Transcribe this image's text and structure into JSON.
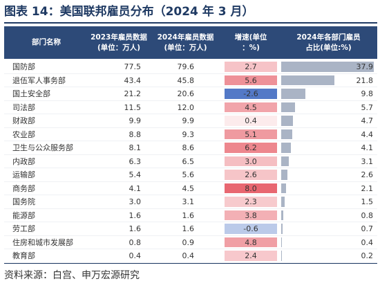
{
  "title": "图表 14：美国联邦雇员分布（2024 年 3 月）",
  "headers": {
    "dept": "部门名称",
    "y2023_line1": "2023年雇员数据",
    "y2023_line2": "(单位：万人)",
    "y2024_line1": "2024年雇员数据",
    "y2024_line2": "(单位：万人)",
    "growth_line1": "增速(单位",
    "growth_line2": "：%)",
    "share_line1": "2024年各部门雇员",
    "share_line2": "占比(单位:%)"
  },
  "colors": {
    "header_bg": "#2d4a78",
    "positive": "#e65c66",
    "negative": "#4a72c4",
    "share_bar": "#aab4c5"
  },
  "rows": [
    {
      "name": "国防部",
      "y2023": "77.5",
      "y2024": "79.6",
      "growth": 2.7,
      "growth_label": "2.7",
      "share": 37.9,
      "share_label": "37.9"
    },
    {
      "name": "退伍军人事务部",
      "y2023": "43.4",
      "y2024": "45.8",
      "growth": 5.6,
      "growth_label": "5.6",
      "share": 21.8,
      "share_label": "21.8"
    },
    {
      "name": "国土安全部",
      "y2023": "21.2",
      "y2024": "20.6",
      "growth": -2.6,
      "growth_label": "-2.6",
      "share": 9.8,
      "share_label": "9.8"
    },
    {
      "name": "司法部",
      "y2023": "11.5",
      "y2024": "12.0",
      "growth": 4.5,
      "growth_label": "4.5",
      "share": 5.7,
      "share_label": "5.7"
    },
    {
      "name": "财政部",
      "y2023": "9.9",
      "y2024": "9.9",
      "growth": 0.4,
      "growth_label": "0.4",
      "share": 4.7,
      "share_label": "4.7"
    },
    {
      "name": "农业部",
      "y2023": "8.8",
      "y2024": "9.3",
      "growth": 5.1,
      "growth_label": "5.1",
      "share": 4.4,
      "share_label": "4.4"
    },
    {
      "name": "卫生与公众服务部",
      "y2023": "8.1",
      "y2024": "8.6",
      "growth": 6.2,
      "growth_label": "6.2",
      "share": 4.1,
      "share_label": "4.1"
    },
    {
      "name": "内政部",
      "y2023": "6.3",
      "y2024": "6.5",
      "growth": 3.0,
      "growth_label": "3.0",
      "share": 3.1,
      "share_label": "3.1"
    },
    {
      "name": "运输部",
      "y2023": "5.4",
      "y2024": "5.6",
      "growth": 2.6,
      "growth_label": "2.6",
      "share": 2.6,
      "share_label": "2.6"
    },
    {
      "name": "商务部",
      "y2023": "4.1",
      "y2024": "4.5",
      "growth": 8.0,
      "growth_label": "8.0",
      "share": 2.1,
      "share_label": "2.1"
    },
    {
      "name": "国务院",
      "y2023": "3.0",
      "y2024": "3.1",
      "growth": 2.3,
      "growth_label": "2.3",
      "share": 1.5,
      "share_label": "1.5"
    },
    {
      "name": "能源部",
      "y2023": "1.6",
      "y2024": "1.6",
      "growth": 3.8,
      "growth_label": "3.8",
      "share": 0.8,
      "share_label": "0.8"
    },
    {
      "name": "劳工部",
      "y2023": "1.6",
      "y2024": "1.6",
      "growth": -0.6,
      "growth_label": "-0.6",
      "share": 0.7,
      "share_label": "0.7"
    },
    {
      "name": "住房和城市发展部",
      "y2023": "0.8",
      "y2024": "0.9",
      "growth": 4.8,
      "growth_label": "4.8",
      "share": 0.4,
      "share_label": "0.4"
    },
    {
      "name": "教育部",
      "y2023": "0.4",
      "y2024": "0.4",
      "growth": 2.4,
      "growth_label": "2.4",
      "share": 0.2,
      "share_label": "0.2"
    }
  ],
  "source": "资料来源：白宫、申万宏源研究"
}
